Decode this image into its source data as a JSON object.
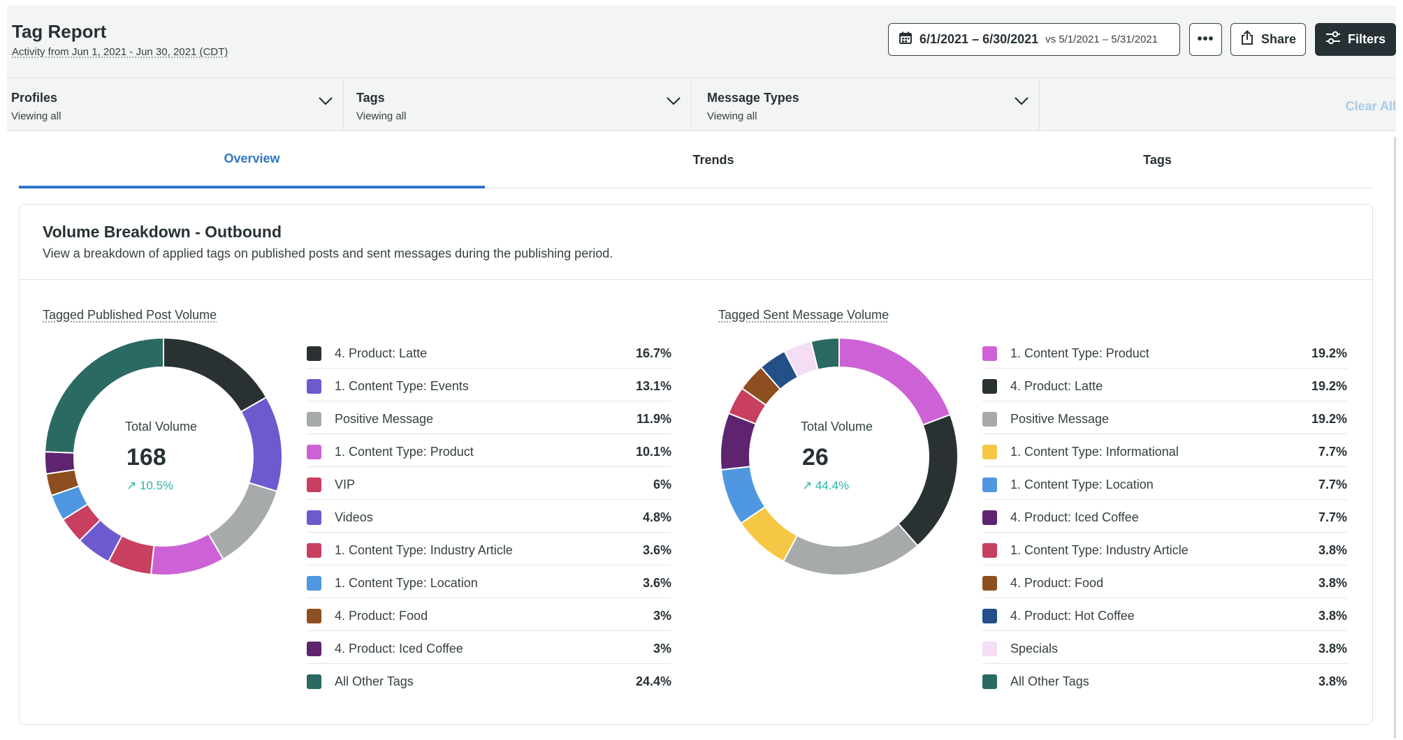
{
  "header": {
    "title": "Tag Report",
    "subtitle": "Activity from Jun 1, 2021 - Jun 30, 2021 (CDT)",
    "date_range": "6/1/2021 – 6/30/2021",
    "compare_range": "vs 5/1/2021 – 5/31/2021",
    "more_label": "•••",
    "share_label": "Share",
    "filters_label": "Filters"
  },
  "filters": {
    "profiles": {
      "label": "Profiles",
      "value": "Viewing all"
    },
    "tags": {
      "label": "Tags",
      "value": "Viewing all"
    },
    "message_types": {
      "label": "Message Types",
      "value": "Viewing all"
    },
    "clear_all": "Clear All"
  },
  "tabs": {
    "overview": "Overview",
    "trends": "Trends",
    "tags": "Tags",
    "active": "Overview"
  },
  "card": {
    "title": "Volume Breakdown - Outbound",
    "description": "View a breakdown of applied tags on published posts and sent messages during the publishing period."
  },
  "colors": {
    "accent": "#2f76c8",
    "positive_change": "#2bb5a6"
  },
  "chart_data": [
    {
      "type": "pie",
      "title": "Tagged Published Post Volume",
      "total_label": "Total Volume",
      "total_value": "168",
      "change": "↗ 10.5%",
      "slices": [
        {
          "name": "4. Product: Latte",
          "pct_label": "16.7%",
          "value": 16.7,
          "color": "#2a3133"
        },
        {
          "name": "1. Content Type: Events",
          "pct_label": "13.1%",
          "value": 13.1,
          "color": "#6e5acf"
        },
        {
          "name": "Positive Message",
          "pct_label": "11.9%",
          "value": 11.9,
          "color": "#a7aaab"
        },
        {
          "name": "1. Content Type: Product",
          "pct_label": "10.1%",
          "value": 10.1,
          "color": "#cd62d6"
        },
        {
          "name": "VIP",
          "pct_label": "6%",
          "value": 6.0,
          "color": "#c83f60"
        },
        {
          "name": "Videos",
          "pct_label": "4.8%",
          "value": 4.8,
          "color": "#6e5acf"
        },
        {
          "name": "1. Content Type: Industry Article",
          "pct_label": "3.6%",
          "value": 3.6,
          "color": "#c83f60"
        },
        {
          "name": "1. Content Type: Location",
          "pct_label": "3.6%",
          "value": 3.6,
          "color": "#4f97e1"
        },
        {
          "name": "4. Product: Food",
          "pct_label": "3%",
          "value": 3.0,
          "color": "#8d4f1f"
        },
        {
          "name": "4. Product: Iced Coffee",
          "pct_label": "3%",
          "value": 3.0,
          "color": "#5e2470"
        },
        {
          "name": "All Other Tags",
          "pct_label": "24.4%",
          "value": 24.4,
          "color": "#2a6a62"
        }
      ]
    },
    {
      "type": "pie",
      "title": "Tagged Sent Message Volume",
      "total_label": "Total Volume",
      "total_value": "26",
      "change": "↗ 44.4%",
      "slices": [
        {
          "name": "1. Content Type: Product",
          "pct_label": "19.2%",
          "value": 19.2,
          "color": "#cd62d6"
        },
        {
          "name": "4. Product: Latte",
          "pct_label": "19.2%",
          "value": 19.2,
          "color": "#2a3133"
        },
        {
          "name": "Positive Message",
          "pct_label": "19.2%",
          "value": 19.2,
          "color": "#a7aaab"
        },
        {
          "name": "1. Content Type: Informational",
          "pct_label": "7.7%",
          "value": 7.7,
          "color": "#f6c744"
        },
        {
          "name": "1. Content Type: Location",
          "pct_label": "7.7%",
          "value": 7.7,
          "color": "#4f97e1"
        },
        {
          "name": "4. Product: Iced Coffee",
          "pct_label": "7.7%",
          "value": 7.7,
          "color": "#5e2470"
        },
        {
          "name": "1. Content Type: Industry Article",
          "pct_label": "3.8%",
          "value": 3.8,
          "color": "#c83f60"
        },
        {
          "name": "4. Product: Food",
          "pct_label": "3.8%",
          "value": 3.8,
          "color": "#8d4f1f"
        },
        {
          "name": "4. Product: Hot Coffee",
          "pct_label": "3.8%",
          "value": 3.8,
          "color": "#244f87"
        },
        {
          "name": "Specials",
          "pct_label": "3.8%",
          "value": 3.8,
          "color": "#f4ddf5"
        },
        {
          "name": "All Other Tags",
          "pct_label": "3.8%",
          "value": 3.8,
          "color": "#2a6a62"
        }
      ]
    }
  ]
}
